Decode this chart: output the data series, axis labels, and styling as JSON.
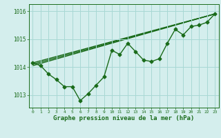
{
  "xlabel": "Graphe pression niveau de la mer (hPa)",
  "bg_color": "#d4eeed",
  "grid_color": "#a8d8d4",
  "line_color": "#1a6b1a",
  "xlim": [
    -0.5,
    23.5
  ],
  "ylim": [
    1012.55,
    1016.25
  ],
  "yticks": [
    1013,
    1014,
    1015,
    1016
  ],
  "xticks": [
    0,
    1,
    2,
    3,
    4,
    5,
    6,
    7,
    8,
    9,
    10,
    11,
    12,
    13,
    14,
    15,
    16,
    17,
    18,
    19,
    20,
    21,
    22,
    23
  ],
  "series1_x": [
    0,
    1,
    2,
    3,
    4,
    5,
    6,
    7,
    8,
    9,
    10,
    11,
    12,
    13,
    14,
    15,
    16,
    17,
    18,
    19,
    20,
    21,
    22,
    23
  ],
  "series1_y": [
    1014.15,
    1014.05,
    1013.75,
    1013.55,
    1013.3,
    1013.3,
    1012.8,
    1013.05,
    1013.35,
    1013.65,
    1014.6,
    1014.45,
    1014.85,
    1014.55,
    1014.25,
    1014.2,
    1014.3,
    1014.85,
    1015.35,
    1015.15,
    1015.45,
    1015.5,
    1015.6,
    1015.9
  ],
  "trend1_x": [
    0,
    23
  ],
  "trend1_y": [
    1014.05,
    1015.9
  ],
  "trend2_x": [
    0,
    23
  ],
  "trend2_y": [
    1014.1,
    1015.9
  ],
  "trend3_x": [
    0,
    23
  ],
  "trend3_y": [
    1014.15,
    1015.9
  ],
  "marker": "D",
  "markersize": 2.5,
  "linewidth": 1.0
}
